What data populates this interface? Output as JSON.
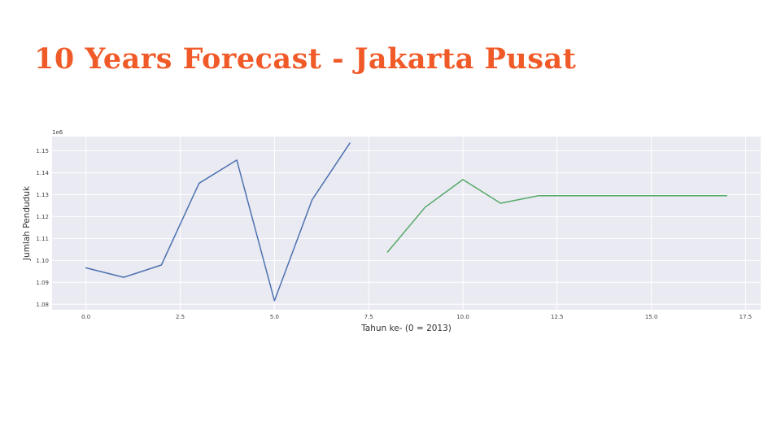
{
  "slide": {
    "title": "10 Years Forecast - Jakarta Pusat"
  },
  "chart_data": {
    "type": "line",
    "xlabel": "Tahun ke- (0 = 2013)",
    "ylabel": "Jumlah Penduduk",
    "y_offset_label": "1e6",
    "xlim": [
      -0.9,
      17.9
    ],
    "ylim": [
      1.0775,
      1.1565
    ],
    "grid": true,
    "background": "#eaeaf2",
    "x_ticks": [
      {
        "value": 0.0,
        "label": "0.0"
      },
      {
        "value": 2.5,
        "label": "2.5"
      },
      {
        "value": 5.0,
        "label": "5.0"
      },
      {
        "value": 7.5,
        "label": "7.5"
      },
      {
        "value": 10.0,
        "label": "10.0"
      },
      {
        "value": 12.5,
        "label": "12.5"
      },
      {
        "value": 15.0,
        "label": "15.0"
      },
      {
        "value": 17.5,
        "label": "17.5"
      }
    ],
    "y_ticks": [
      {
        "value": 1.08,
        "label": "1.08"
      },
      {
        "value": 1.09,
        "label": "1.09"
      },
      {
        "value": 1.1,
        "label": "1.10"
      },
      {
        "value": 1.11,
        "label": "1.11"
      },
      {
        "value": 1.12,
        "label": "1.12"
      },
      {
        "value": 1.13,
        "label": "1.13"
      },
      {
        "value": 1.14,
        "label": "1.14"
      },
      {
        "value": 1.15,
        "label": "1.15"
      }
    ],
    "series": [
      {
        "color": "#4c72b0",
        "x": [
          0,
          1,
          2,
          3,
          4,
          5,
          6,
          7
        ],
        "y": [
          1.0966,
          1.0923,
          1.0979,
          1.1352,
          1.1458,
          1.0816,
          1.1277,
          1.1535
        ]
      },
      {
        "color": "#55a868",
        "x": [
          8,
          9,
          10,
          11,
          12,
          13,
          14,
          15,
          16,
          17
        ],
        "y": [
          1.1038,
          1.1243,
          1.1369,
          1.1261,
          1.1295,
          1.1295,
          1.1295,
          1.1295,
          1.1295,
          1.1295
        ]
      }
    ]
  }
}
